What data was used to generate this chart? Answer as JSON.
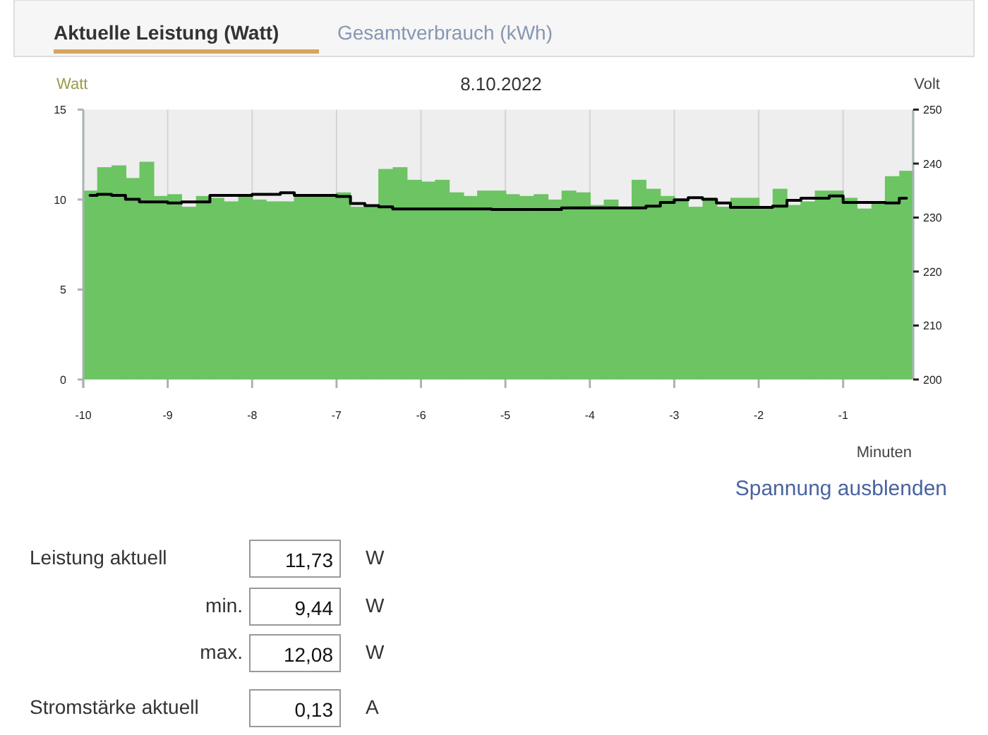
{
  "chart_data": {
    "type": "bar",
    "title": "8.10.2022",
    "xlabel": "Minuten",
    "ylabel": "Watt",
    "y2label": "Volt",
    "x": [
      -9.92,
      -9.75,
      -9.58,
      -9.42,
      -9.25,
      -9.08,
      -8.92,
      -8.75,
      -8.58,
      -8.42,
      -8.25,
      -8.08,
      -7.92,
      -7.75,
      -7.58,
      -7.42,
      -7.25,
      -7.08,
      -6.92,
      -6.75,
      -6.58,
      -6.42,
      -6.25,
      -6.08,
      -5.92,
      -5.75,
      -5.58,
      -5.42,
      -5.25,
      -5.08,
      -4.92,
      -4.75,
      -4.58,
      -4.42,
      -4.25,
      -4.08,
      -3.92,
      -3.75,
      -3.58,
      -3.42,
      -3.25,
      -3.08,
      -2.92,
      -2.75,
      -2.58,
      -2.42,
      -2.25,
      -2.08,
      -1.92,
      -1.75,
      -1.58,
      -1.42,
      -1.25,
      -1.08,
      -0.92,
      -0.75,
      -0.58,
      -0.42,
      -0.25
    ],
    "series": [
      {
        "color": "#6cc463",
        "values": [
          10.5,
          11.8,
          11.9,
          11.2,
          12.1,
          10.2,
          10.3,
          9.6,
          10.2,
          10.1,
          9.9,
          10.2,
          10.0,
          9.9,
          9.9,
          10.2,
          10.2,
          10.2,
          10.4,
          9.6,
          9.6,
          11.7,
          11.8,
          11.1,
          11.0,
          11.1,
          10.4,
          10.2,
          10.5,
          10.5,
          10.3,
          10.2,
          10.3,
          10.0,
          10.5,
          10.4,
          9.7,
          10.0,
          9.6,
          11.1,
          10.6,
          10.2,
          10.0,
          9.6,
          10.1,
          9.6,
          10.1,
          10.1,
          9.6,
          10.6,
          9.7,
          9.9,
          10.5,
          10.5,
          10.1,
          9.5,
          9.8,
          11.3,
          11.6
        ]
      },
      {
        "type": "step",
        "axis": "y2",
        "color": "#000000",
        "values": [
          234.1,
          234.3,
          234.1,
          233.4,
          232.9,
          232.9,
          232.7,
          232.9,
          232.9,
          234.1,
          234.1,
          234.1,
          234.3,
          234.3,
          234.6,
          234.1,
          234.1,
          234.1,
          233.9,
          232.6,
          232.2,
          232.0,
          231.6,
          231.6,
          231.6,
          231.6,
          231.6,
          231.6,
          231.6,
          231.5,
          231.5,
          231.5,
          231.5,
          231.5,
          231.8,
          231.8,
          231.8,
          231.8,
          231.8,
          231.8,
          232.1,
          232.8,
          233.3,
          233.7,
          233.4,
          232.7,
          231.9,
          231.9,
          231.9,
          232.1,
          233.2,
          233.6,
          233.6,
          234.0,
          232.8,
          232.8,
          232.8,
          232.7,
          233.6
        ]
      }
    ],
    "xlim": [
      -10,
      -0.17
    ],
    "xticks": [
      -10,
      -9,
      -8,
      -7,
      -6,
      -5,
      -4,
      -3,
      -2,
      -1
    ],
    "ylim": [
      0,
      15
    ],
    "yticks": [
      0,
      5,
      10,
      15
    ],
    "y2lim": [
      200,
      250
    ],
    "y2ticks": [
      200,
      210,
      220,
      230,
      240,
      250
    ],
    "grid": "x",
    "annotations": [
      "Aktuelle Leistung (Watt)",
      "Gesamtverbrauch (kWh)",
      "Spannung ausblenden",
      "Leistung aktuell",
      "11,73",
      "W",
      "min.",
      "9,44",
      "W",
      "max.",
      "12,08",
      "W",
      "Stromstärke aktuell",
      "0,13",
      "A"
    ]
  }
}
